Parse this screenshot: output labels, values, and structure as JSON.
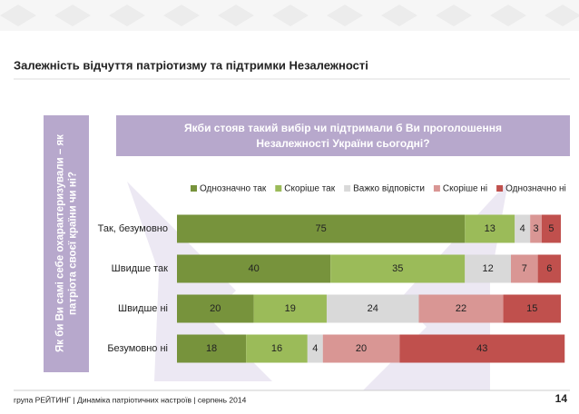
{
  "chart_data": {
    "type": "bar",
    "orientation": "horizontal",
    "stacked": true,
    "title": "Залежність відчуття патріотизму та підтримки Незалежності",
    "subtitle": "Якби стояв такий вибір чи підтримали б Ви проголошення Незалежності України сьогодні?",
    "ylabel": "Як би Ви самі себе охарактеризували – як патріота своєї країни чи ні?",
    "categories": [
      "Так, безумовно",
      "Швидше так",
      "Швидше ні",
      "Безумовно ні"
    ],
    "xlim": [
      0,
      100
    ],
    "series": [
      {
        "name": "Однозначно так",
        "color": "#77933c",
        "values": [
          75,
          40,
          20,
          18
        ]
      },
      {
        "name": "Скоріше так",
        "color": "#9bbb59",
        "values": [
          13,
          35,
          19,
          16
        ]
      },
      {
        "name": "Важко відповісти",
        "color": "#d9d9d9",
        "values": [
          4,
          12,
          24,
          4
        ]
      },
      {
        "name": "Скоріше ні",
        "color": "#d99694",
        "values": [
          3,
          7,
          22,
          20
        ]
      },
      {
        "name": "Однозначно ні",
        "color": "#c0504d",
        "values": [
          5,
          6,
          15,
          43
        ]
      }
    ]
  },
  "footer": {
    "text": "група РЕЙТИНГ | Динаміка патріотичних настроїв | серпень 2014",
    "page": 14
  }
}
